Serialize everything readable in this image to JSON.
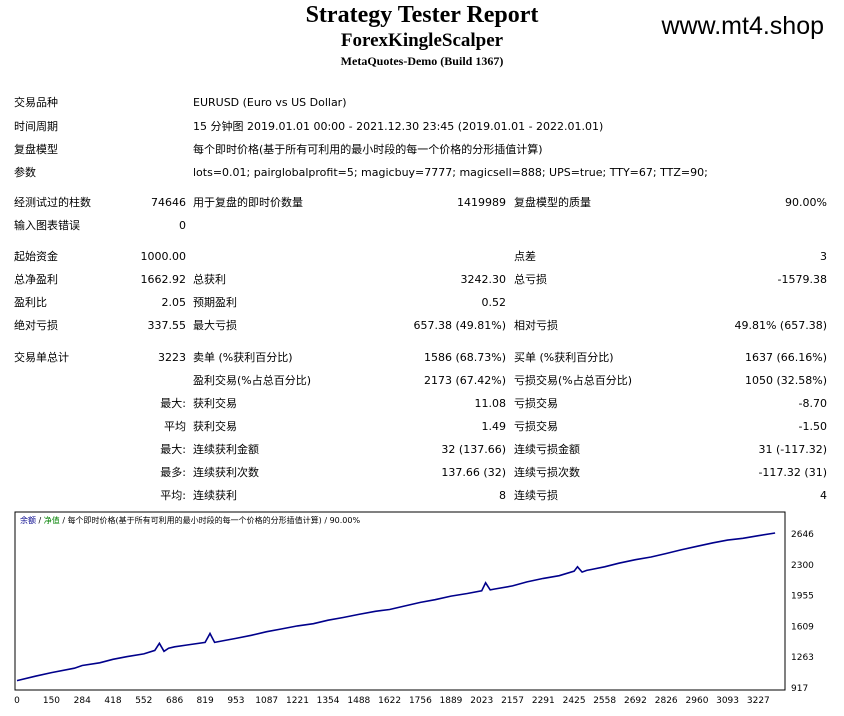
{
  "header": {
    "title": "Strategy Tester Report",
    "ea_name": "ForexKingleScalper",
    "build": "MetaQuotes-Demo (Build 1367)",
    "watermark": "www.mt4.shop"
  },
  "info": {
    "symbol_label": "交易品种",
    "symbol_value": "EURUSD (Euro vs US Dollar)",
    "period_label": "时间周期",
    "period_value": "15 分钟图 2019.01.01 00:00 - 2021.12.30 23:45 (2019.01.01 - 2022.01.01)",
    "model_label": "复盘模型",
    "model_value": "每个即时价格(基于所有可利用的最小时段的每一个价格的分形插值计算)",
    "params_label": "参数",
    "params_value": "lots=0.01; pairglobalprofit=5; magicbuy=7777; magicsell=888; UPS=true; TTY=67; TTZ=90;"
  },
  "stats": {
    "bars_label": "经测试过的柱数",
    "bars_value": "74646",
    "ticks_label": "用于复盘的即时价数量",
    "ticks_value": "1419989",
    "quality_label": "复盘模型的质量",
    "quality_value": "90.00%",
    "errors_label": "输入图表错误",
    "errors_value": "0",
    "deposit_label": "起始资金",
    "deposit_value": "1000.00",
    "spread_label": "点差",
    "spread_value": "3",
    "net_label": "总净盈利",
    "net_value": "1662.92",
    "gross_profit_label": "总获利",
    "gross_profit_value": "3242.30",
    "gross_loss_label": "总亏损",
    "gross_loss_value": "-1579.38",
    "pf_label": "盈利比",
    "pf_value": "2.05",
    "expected_label": "预期盈利",
    "expected_value": "0.52",
    "abs_dd_label": "绝对亏损",
    "abs_dd_value": "337.55",
    "max_dd_label": "最大亏损",
    "max_dd_value": "657.38 (49.81%)",
    "rel_dd_label": "相对亏损",
    "rel_dd_value": "49.81% (657.38)",
    "trades_label": "交易单总计",
    "trades_value": "3223",
    "short_label": "卖单 (%获利百分比)",
    "short_value": "1586 (68.73%)",
    "long_label": "买单 (%获利百分比)",
    "long_value": "1637 (66.16%)",
    "win_label": "盈利交易(%占总百分比)",
    "win_value": "2173 (67.42%)",
    "lossT_label": "亏损交易(%占总百分比)",
    "lossT_value": "1050 (32.58%)",
    "max_label": "最大:",
    "largest_profit_label": "获利交易",
    "largest_profit_value": "11.08",
    "largest_loss_label": "亏损交易",
    "largest_loss_value": "-8.70",
    "avg_label": "平均",
    "avg_profit_label": "获利交易",
    "avg_profit_value": "1.49",
    "avg_loss_label": "亏损交易",
    "avg_loss_value": "-1.50",
    "max2_label": "最大:",
    "cons_win_amt_label": "连续获利金额",
    "cons_win_amt_value": "32 (137.66)",
    "cons_loss_amt_label": "连续亏损金额",
    "cons_loss_amt_value": "31 (-117.32)",
    "most_label": "最多:",
    "cons_win_cnt_label": "连续获利次数",
    "cons_win_cnt_value": "137.66 (32)",
    "cons_loss_cnt_label": "连续亏损次数",
    "cons_loss_cnt_value": "-117.32 (31)",
    "avg2_label": "平均:",
    "avg_cons_win_label": "连续获利",
    "avg_cons_win_value": "8",
    "avg_cons_loss_label": "连续亏损",
    "avg_cons_loss_value": "4"
  },
  "chart_data": {
    "type": "line",
    "legend_parts": [
      "余额",
      " / ",
      "净值",
      " / 每个即时价格(基于所有可利用的最小时段的每一个价格的分形插值计算) / 90.00%"
    ],
    "x_ticks": [
      0,
      150,
      284,
      418,
      552,
      686,
      819,
      953,
      1087,
      1221,
      1354,
      1488,
      1622,
      1756,
      1889,
      2023,
      2157,
      2291,
      2425,
      2558,
      2692,
      2826,
      2960,
      3093,
      3227
    ],
    "y_ticks": [
      917,
      1263,
      1609,
      1955,
      2300,
      2646
    ],
    "xlim": [
      0,
      3330
    ],
    "ylim": [
      917,
      2750
    ],
    "series": [
      {
        "color": "#00008b",
        "x": [
          0,
          80,
          150,
          250,
          284,
          360,
          418,
          480,
          552,
          600,
          620,
          640,
          660,
          686,
          740,
          819,
          840,
          860,
          880,
          900,
          953,
          1020,
          1087,
          1150,
          1221,
          1290,
          1354,
          1420,
          1488,
          1560,
          1622,
          1690,
          1756,
          1820,
          1889,
          1960,
          2023,
          2040,
          2060,
          2080,
          2157,
          2220,
          2291,
          2360,
          2425,
          2440,
          2460,
          2480,
          2500,
          2558,
          2620,
          2692,
          2760,
          2826,
          2890,
          2960,
          3030,
          3093,
          3160,
          3227,
          3300
        ],
        "y": [
          1000,
          1050,
          1090,
          1140,
          1170,
          1200,
          1240,
          1270,
          1300,
          1340,
          1420,
          1330,
          1365,
          1380,
          1400,
          1430,
          1530,
          1430,
          1440,
          1450,
          1475,
          1510,
          1550,
          1580,
          1615,
          1640,
          1680,
          1710,
          1745,
          1780,
          1800,
          1840,
          1880,
          1910,
          1950,
          1980,
          2010,
          2100,
          2020,
          2030,
          2065,
          2110,
          2150,
          2180,
          2230,
          2280,
          2220,
          2240,
          2250,
          2280,
          2320,
          2360,
          2390,
          2430,
          2470,
          2510,
          2550,
          2580,
          2600,
          2630,
          2660
        ]
      }
    ]
  }
}
